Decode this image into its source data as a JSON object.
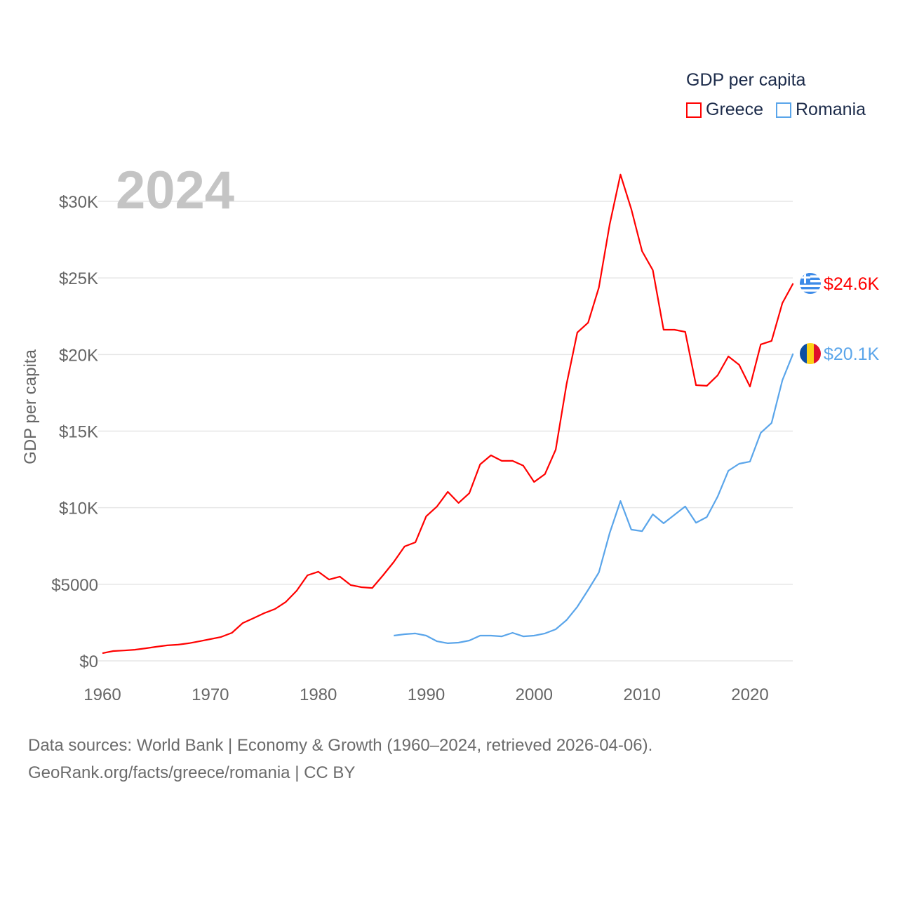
{
  "chart_data": {
    "type": "line",
    "title": "GDP per capita",
    "ylabel": "GDP per capita",
    "xlabel": "",
    "xlim": [
      1960,
      2024
    ],
    "ylim": [
      0,
      32000
    ],
    "x_ticks": [
      1960,
      1970,
      1980,
      1990,
      2000,
      2010,
      2020
    ],
    "x_tick_labels": [
      "1960",
      "1970",
      "1980",
      "1990",
      "2000",
      "2010",
      "2020"
    ],
    "y_ticks": [
      0,
      5000,
      10000,
      15000,
      20000,
      25000,
      30000
    ],
    "y_tick_labels": [
      "$0",
      "$5000",
      "$10K",
      "$15K",
      "$20K",
      "$25K",
      "$30K"
    ],
    "grid": true,
    "legend_placement": "top-right",
    "current_year": "2024",
    "series": [
      {
        "name": "Greece",
        "color": "#ff0000",
        "end_label": "$24.6K",
        "flag": "greece-flag",
        "start_year": 1960,
        "values": [
          500,
          640,
          680,
          730,
          820,
          920,
          1010,
          1060,
          1150,
          1280,
          1420,
          1560,
          1830,
          2470,
          2790,
          3120,
          3390,
          3850,
          4580,
          5590,
          5820,
          5310,
          5500,
          4950,
          4810,
          4760,
          5590,
          6460,
          7470,
          7740,
          9440,
          10080,
          11040,
          10310,
          10950,
          12830,
          13420,
          13060,
          13060,
          12740,
          11680,
          12190,
          13790,
          18050,
          21440,
          22080,
          24370,
          28490,
          31750,
          29500,
          26750,
          25510,
          21620,
          21620,
          21480,
          18000,
          17960,
          18640,
          19880,
          19330,
          17910,
          20660,
          20890,
          23360,
          24640
        ]
      },
      {
        "name": "Romania",
        "color": "#5aa5ea",
        "end_label": "$20.1K",
        "flag": "romania-flag",
        "start_year": 1987,
        "values": [
          1650,
          1740,
          1790,
          1650,
          1280,
          1150,
          1190,
          1330,
          1650,
          1650,
          1600,
          1830,
          1600,
          1650,
          1790,
          2060,
          2660,
          3530,
          4630,
          5770,
          8340,
          10440,
          8570,
          8470,
          9570,
          8980,
          9530,
          10080,
          9020,
          9390,
          10720,
          12410,
          12870,
          13010,
          14890,
          15530,
          18320,
          20060
        ]
      }
    ]
  },
  "footer": {
    "line1": "Data sources: World Bank | Economy & Growth (1960–2024, retrieved 2026-04-06).",
    "line2": "GeoRank.org/facts/greece/romania | CC BY"
  }
}
